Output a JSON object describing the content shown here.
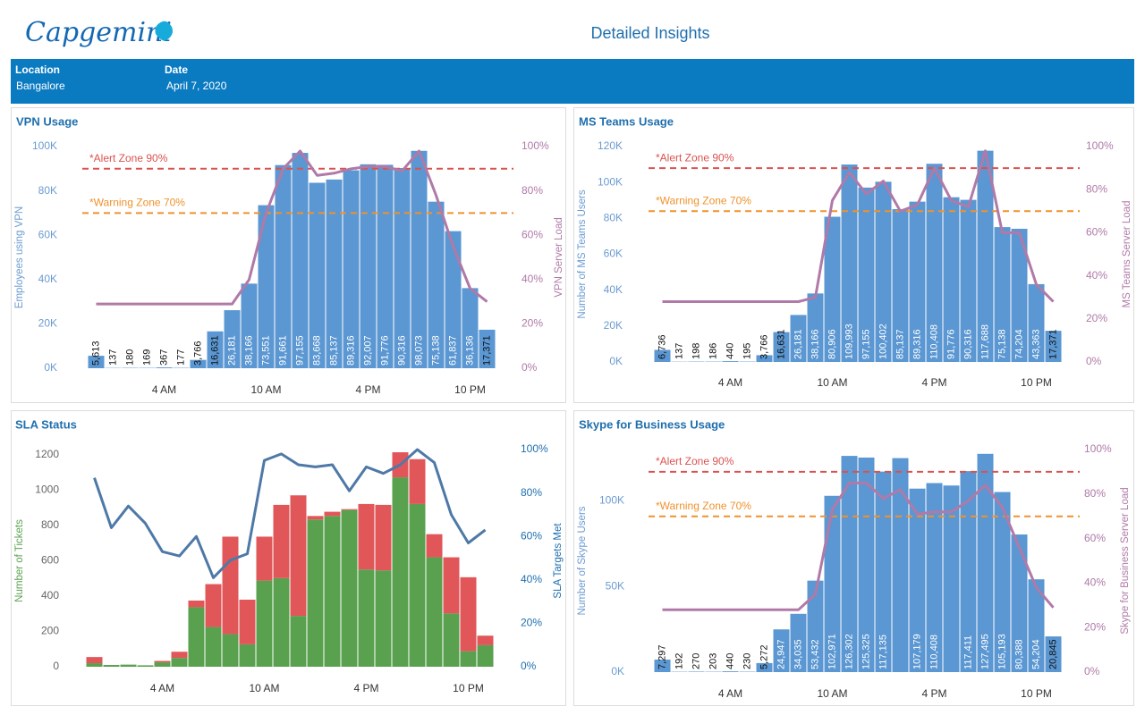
{
  "header": {
    "logo": "Capgemini",
    "title": "Detailed Insights",
    "filters": [
      {
        "label": "Location",
        "value": "Bangalore"
      },
      {
        "label": "Date",
        "value": "April 7, 2020"
      }
    ]
  },
  "chart_data": [
    {
      "type": "bar",
      "title": "VPN Usage",
      "y_label": "Employees using VPN",
      "y2_label": "VPN Server Load",
      "categories": [
        null,
        null,
        null,
        null,
        "4 AM",
        null,
        null,
        null,
        null,
        null,
        "10 AM",
        null,
        null,
        null,
        null,
        null,
        "4 PM",
        null,
        null,
        null,
        null,
        null,
        "10 PM",
        null
      ],
      "ylim": [
        0,
        100000
      ],
      "yticks": [
        {
          "value": 0,
          "label": "0K"
        },
        {
          "value": 20000,
          "label": "20K"
        },
        {
          "value": 40000,
          "label": "40K"
        },
        {
          "value": 60000,
          "label": "60K"
        },
        {
          "value": 80000,
          "label": "80K"
        },
        {
          "value": 100000,
          "label": "100K"
        }
      ],
      "y2lim": [
        0,
        100
      ],
      "y2ticks": [
        {
          "value": 0,
          "label": "0%"
        },
        {
          "value": 20,
          "label": "20%"
        },
        {
          "value": 40,
          "label": "40%"
        },
        {
          "value": 60,
          "label": "60%"
        },
        {
          "value": 80,
          "label": "80%"
        },
        {
          "value": 100,
          "label": "100%"
        }
      ],
      "reference_lines": [
        {
          "value": 90,
          "label": "*Alert Zone 90%",
          "color": "#d9534f",
          "axis": "y2"
        },
        {
          "value": 70,
          "label": "*Warning Zone 70%",
          "color": "#f0922c",
          "axis": "y2"
        }
      ],
      "series": [
        {
          "type": "bar",
          "color": "#5b97d2",
          "values": [
            5613,
            137,
            180,
            169,
            367,
            177,
            3766,
            16631,
            26181,
            38166,
            73551,
            91661,
            97155,
            83668,
            85137,
            89316,
            92007,
            91776,
            90316,
            98073,
            75138,
            61837,
            36136,
            17371
          ],
          "value_labels": [
            "5,613",
            "137",
            "180",
            "169",
            "367",
            "177",
            "3,766",
            "16,631",
            "26,181",
            "38,166",
            "73,551",
            "91,661",
            "97,155",
            "83,668",
            "85,137",
            "89,316",
            "92,007",
            "91,776",
            "90,316",
            "98,073",
            "75,138",
            "61,837",
            "36,136",
            "17,371"
          ]
        },
        {
          "type": "line",
          "axis": "y2",
          "color": "#b07aa8",
          "values": [
            29,
            29,
            29,
            29,
            29,
            29,
            29,
            29,
            29,
            40,
            70,
            90,
            98,
            87,
            88,
            90,
            91,
            91,
            89,
            98,
            78,
            55,
            36,
            30
          ]
        }
      ]
    },
    {
      "type": "bar",
      "title": "MS Teams Usage",
      "y_label": "Number of MS Teams Users",
      "y2_label": "MS Teams Server Load",
      "categories": [
        null,
        null,
        null,
        null,
        "4 AM",
        null,
        null,
        null,
        null,
        null,
        "10 AM",
        null,
        null,
        null,
        null,
        null,
        "4 PM",
        null,
        null,
        null,
        null,
        null,
        "10 PM",
        null
      ],
      "ylim": [
        0,
        120000
      ],
      "yticks": [
        {
          "value": 0,
          "label": "0K"
        },
        {
          "value": 20000,
          "label": "20K"
        },
        {
          "value": 40000,
          "label": "40K"
        },
        {
          "value": 60000,
          "label": "60K"
        },
        {
          "value": 80000,
          "label": "80K"
        },
        {
          "value": 100000,
          "label": "100K"
        },
        {
          "value": 120000,
          "label": "120K"
        }
      ],
      "y2lim": [
        0,
        100
      ],
      "y2ticks": [
        {
          "value": 0,
          "label": "0%"
        },
        {
          "value": 20,
          "label": "20%"
        },
        {
          "value": 40,
          "label": "40%"
        },
        {
          "value": 60,
          "label": "60%"
        },
        {
          "value": 80,
          "label": "80%"
        },
        {
          "value": 100,
          "label": "100%"
        }
      ],
      "reference_lines": [
        {
          "value": 90,
          "label": "*Alert Zone 90%",
          "color": "#d9534f",
          "axis": "y2"
        },
        {
          "value": 70,
          "label": "*Warning Zone 70%",
          "color": "#f0922c",
          "axis": "y2"
        }
      ],
      "series": [
        {
          "type": "bar",
          "color": "#5b97d2",
          "values": [
            6736,
            137,
            198,
            186,
            440,
            195,
            3766,
            16631,
            26181,
            38166,
            80906,
            109993,
            97155,
            100402,
            85137,
            89316,
            110408,
            91776,
            90316,
            117688,
            75138,
            74204,
            43363,
            17371
          ],
          "value_labels": [
            "6,736",
            "137",
            "198",
            "186",
            "440",
            "195",
            "3,766",
            "16,631",
            "26,181",
            "38,166",
            "80,906",
            "109,993",
            "97,155",
            "100,402",
            "85,137",
            "89,316",
            "110,408",
            "91,776",
            "90,316",
            "117,688",
            "75,138",
            "74,204",
            "43,363",
            "17,371"
          ]
        },
        {
          "type": "line",
          "axis": "y2",
          "color": "#b07aa8",
          "values": [
            28,
            28,
            28,
            28,
            28,
            28,
            28,
            28,
            28,
            30,
            75,
            88,
            78,
            84,
            70,
            73,
            90,
            75,
            72,
            98,
            60,
            60,
            36,
            28
          ]
        }
      ]
    },
    {
      "type": "bar",
      "stacked": true,
      "title": "SLA Status",
      "y_label": "Number of Tickets",
      "y2_label": "SLA Targets Met",
      "categories": [
        null,
        null,
        null,
        null,
        "4 AM",
        null,
        null,
        null,
        null,
        null,
        "10 AM",
        null,
        null,
        null,
        null,
        null,
        "4 PM",
        null,
        null,
        null,
        null,
        null,
        "10 PM",
        null
      ],
      "ylim": [
        0,
        1200
      ],
      "yticks": [
        0,
        200,
        400,
        600,
        800,
        1000,
        1200
      ],
      "y2lim": [
        0,
        100
      ],
      "y2ticks": [
        {
          "value": 0,
          "label": "0%"
        },
        {
          "value": 20,
          "label": "20%"
        },
        {
          "value": 40,
          "label": "40%"
        },
        {
          "value": 60,
          "label": "60%"
        },
        {
          "value": 80,
          "label": "80%"
        },
        {
          "value": 100,
          "label": "100%"
        }
      ],
      "series": [
        {
          "type": "bar",
          "color": "#59a14f",
          "values": [
            20,
            10,
            12,
            8,
            25,
            50,
            337,
            225,
            185,
            127,
            488,
            502,
            288,
            834,
            854,
            888,
            551,
            546,
            1073,
            922,
            620,
            302,
            88,
            122
          ]
        },
        {
          "type": "bar",
          "color": "#e15759",
          "values": [
            35,
            0,
            0,
            0,
            8,
            35,
            38,
            243,
            552,
            253,
            249,
            415,
            683,
            20,
            24,
            5,
            371,
            371,
            142,
            254,
            131,
            318,
            419,
            54
          ]
        },
        {
          "type": "line",
          "axis": "y2",
          "color": "#4e79a7",
          "values": [
            87,
            64,
            74,
            66,
            53,
            51,
            60,
            41,
            49,
            52,
            95,
            98,
            93,
            92,
            93,
            81,
            92,
            89,
            93,
            100,
            94,
            70,
            57,
            63
          ]
        }
      ]
    },
    {
      "type": "bar",
      "title": "Skype for Business Usage",
      "y_label": "Number of Skype Users",
      "y2_label": "Skype for Business Server Load",
      "categories": [
        null,
        null,
        null,
        null,
        "4 AM",
        null,
        null,
        null,
        null,
        null,
        "10 AM",
        null,
        null,
        null,
        null,
        null,
        "4 PM",
        null,
        null,
        null,
        null,
        null,
        "10 PM",
        null
      ],
      "ylim": [
        0,
        130000
      ],
      "yticks": [
        {
          "value": 0,
          "label": "0K"
        },
        {
          "value": 50000,
          "label": "50K"
        },
        {
          "value": 100000,
          "label": "100K"
        }
      ],
      "y2lim": [
        0,
        100
      ],
      "y2ticks": [
        {
          "value": 0,
          "label": "0%"
        },
        {
          "value": 20,
          "label": "20%"
        },
        {
          "value": 40,
          "label": "40%"
        },
        {
          "value": 60,
          "label": "60%"
        },
        {
          "value": 80,
          "label": "80%"
        },
        {
          "value": 100,
          "label": "100%"
        }
      ],
      "reference_lines": [
        {
          "value": 90,
          "label": "*Alert Zone 90%",
          "color": "#d9534f",
          "axis": "y2"
        },
        {
          "value": 70,
          "label": "*Warning Zone 70%",
          "color": "#f0922c",
          "axis": "y2"
        }
      ],
      "series": [
        {
          "type": "bar",
          "color": "#5b97d2",
          "values": [
            7297,
            192,
            270,
            203,
            440,
            230,
            5272,
            24947,
            34035,
            53432,
            102971,
            126302,
            125325,
            117135,
            125000,
            107179,
            110408,
            109000,
            117411,
            127495,
            105193,
            80388,
            54204,
            20845
          ],
          "value_labels": [
            "7,297",
            "192",
            "270",
            "203",
            "440",
            "230",
            "5,272",
            "24,947",
            "34,035",
            "53,432",
            "102,971",
            "126,302",
            "125,325",
            "117,135",
            null,
            "107,179",
            "110,408",
            null,
            "117,411",
            "127,495",
            "105,193",
            "80,388",
            "54,204",
            "20,845"
          ]
        },
        {
          "type": "line",
          "axis": "y2",
          "color": "#b07aa8",
          "values": [
            28,
            28,
            28,
            28,
            28,
            28,
            28,
            28,
            28,
            35,
            73,
            85,
            85,
            78,
            82,
            71,
            72,
            72,
            77,
            84,
            74,
            56,
            38,
            29
          ]
        }
      ]
    }
  ]
}
